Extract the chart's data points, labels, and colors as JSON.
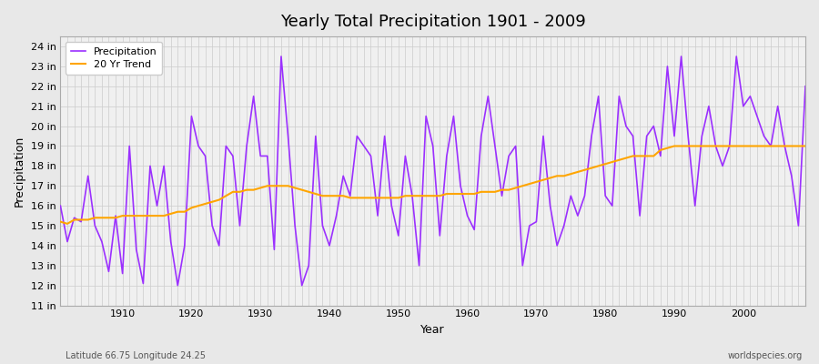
{
  "title": "Yearly Total Precipitation 1901 - 2009",
  "xlabel": "Year",
  "ylabel": "Precipitation",
  "subtitle_left": "Latitude 66.75 Longitude 24.25",
  "subtitle_right": "worldspecies.org",
  "ylim": [
    11,
    24.5
  ],
  "yticks": [
    11,
    12,
    13,
    14,
    15,
    16,
    17,
    18,
    19,
    20,
    21,
    22,
    23,
    24
  ],
  "ytick_labels": [
    "11 in",
    "12 in",
    "13 in",
    "14 in",
    "15 in",
    "16 in",
    "17 in",
    "18 in",
    "19 in",
    "20 in",
    "21 in",
    "22 in",
    "23 in",
    "24 in"
  ],
  "precip_color": "#9B30FF",
  "trend_color": "#FFA500",
  "bg_color": "#E8E8E8",
  "plot_bg_color": "#F0F0F0",
  "legend_bg": "#FFFFFF",
  "years": [
    1901,
    1902,
    1903,
    1904,
    1905,
    1906,
    1907,
    1908,
    1909,
    1910,
    1911,
    1912,
    1913,
    1914,
    1915,
    1916,
    1917,
    1918,
    1919,
    1920,
    1921,
    1922,
    1923,
    1924,
    1925,
    1926,
    1927,
    1928,
    1929,
    1930,
    1931,
    1932,
    1933,
    1934,
    1935,
    1936,
    1937,
    1938,
    1939,
    1940,
    1941,
    1942,
    1943,
    1944,
    1945,
    1946,
    1947,
    1948,
    1949,
    1950,
    1951,
    1952,
    1953,
    1954,
    1955,
    1956,
    1957,
    1958,
    1959,
    1960,
    1961,
    1962,
    1963,
    1964,
    1965,
    1966,
    1967,
    1968,
    1969,
    1970,
    1971,
    1972,
    1973,
    1974,
    1975,
    1976,
    1977,
    1978,
    1979,
    1980,
    1981,
    1982,
    1983,
    1984,
    1985,
    1986,
    1987,
    1988,
    1989,
    1990,
    1991,
    1992,
    1993,
    1994,
    1995,
    1996,
    1997,
    1998,
    1999,
    2000,
    2001,
    2002,
    2003,
    2004,
    2005,
    2006,
    2007,
    2008,
    2009
  ],
  "precipitation": [
    16.0,
    14.2,
    15.4,
    15.2,
    17.5,
    15.0,
    14.2,
    12.7,
    15.5,
    12.6,
    19.0,
    13.8,
    12.1,
    18.0,
    16.0,
    18.0,
    14.2,
    12.0,
    14.0,
    20.5,
    19.0,
    18.5,
    15.0,
    14.0,
    19.0,
    18.5,
    15.0,
    19.0,
    21.5,
    18.5,
    18.5,
    13.8,
    23.5,
    19.5,
    15.0,
    12.0,
    13.0,
    19.5,
    15.0,
    14.0,
    15.5,
    17.5,
    16.5,
    19.5,
    19.0,
    18.5,
    15.5,
    19.5,
    16.0,
    14.5,
    18.5,
    16.5,
    13.0,
    20.5,
    19.0,
    14.5,
    18.5,
    20.5,
    17.0,
    15.5,
    14.8,
    19.5,
    21.5,
    19.0,
    16.5,
    18.5,
    19.0,
    13.0,
    15.0,
    15.2,
    19.5,
    16.0,
    14.0,
    15.0,
    16.5,
    15.5,
    16.5,
    19.5,
    21.5,
    16.5,
    16.0,
    21.5,
    20.0,
    19.5,
    15.5,
    19.5,
    20.0,
    18.5,
    23.0,
    19.5,
    23.5,
    19.5,
    16.0,
    19.5,
    21.0,
    19.0,
    18.0,
    19.0,
    23.5,
    21.0,
    21.5,
    20.5,
    19.5,
    19.0,
    21.0,
    19.0,
    17.5,
    15.0,
    22.0
  ],
  "trend": [
    15.2,
    15.1,
    15.3,
    15.3,
    15.3,
    15.4,
    15.4,
    15.4,
    15.4,
    15.5,
    15.5,
    15.5,
    15.5,
    15.5,
    15.5,
    15.5,
    15.6,
    15.7,
    15.7,
    15.9,
    16.0,
    16.1,
    16.2,
    16.3,
    16.5,
    16.7,
    16.7,
    16.8,
    16.8,
    16.9,
    17.0,
    17.0,
    17.0,
    17.0,
    16.9,
    16.8,
    16.7,
    16.6,
    16.5,
    16.5,
    16.5,
    16.5,
    16.4,
    16.4,
    16.4,
    16.4,
    16.4,
    16.4,
    16.4,
    16.4,
    16.5,
    16.5,
    16.5,
    16.5,
    16.5,
    16.5,
    16.6,
    16.6,
    16.6,
    16.6,
    16.6,
    16.7,
    16.7,
    16.7,
    16.8,
    16.8,
    16.9,
    17.0,
    17.1,
    17.2,
    17.3,
    17.4,
    17.5,
    17.5,
    17.6,
    17.7,
    17.8,
    17.9,
    18.0,
    18.1,
    18.2,
    18.3,
    18.4,
    18.5,
    18.5,
    18.5,
    18.5,
    18.8,
    18.9,
    19.0,
    19.0,
    19.0,
    19.0,
    19.0,
    19.0,
    19.0,
    19.0,
    19.0,
    19.0,
    19.0,
    19.0,
    19.0,
    19.0,
    19.0,
    19.0,
    19.0,
    19.0,
    19.0,
    19.0
  ]
}
